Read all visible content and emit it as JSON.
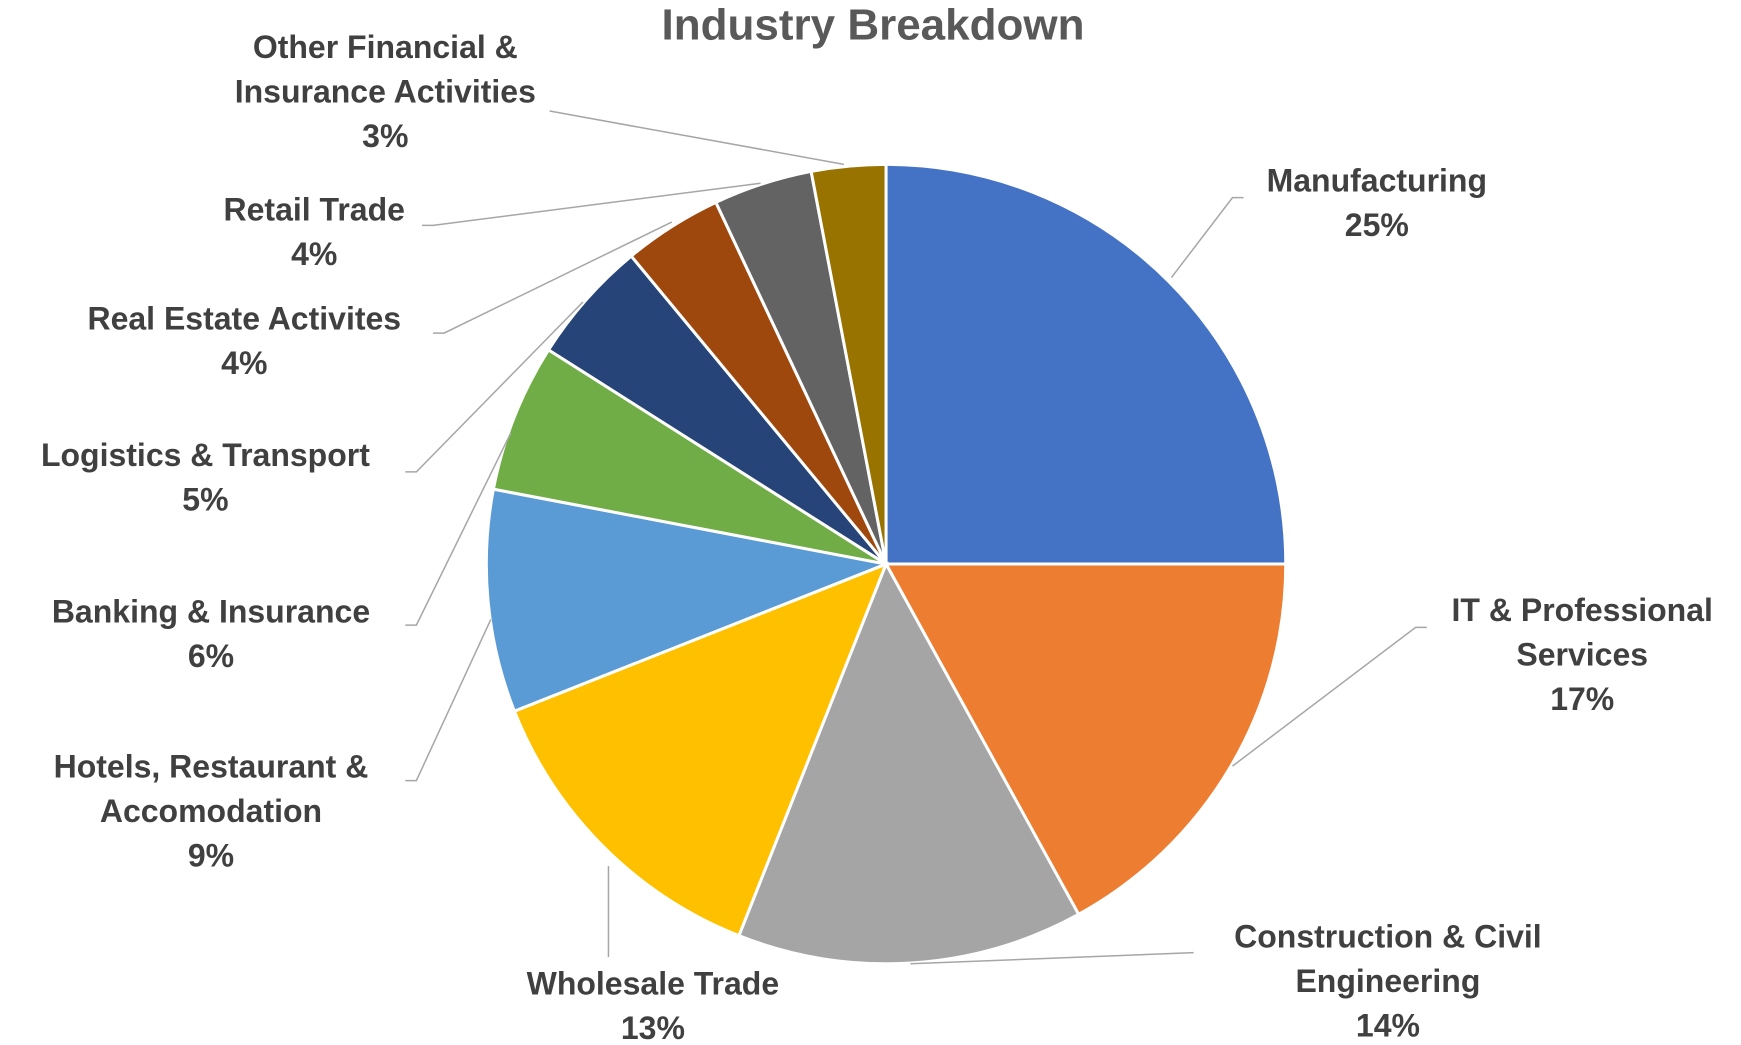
{
  "chart_data": {
    "type": "pie",
    "title": "Industry Breakdown",
    "categories": [
      "Manufacturing",
      "IT & Professional Services",
      "Construction & Civil Engineering",
      "Wholesale Trade",
      "Hotels, Restaurant & Accomodation",
      "Banking & Insurance",
      "Logistics & Transport",
      "Real Estate Activites",
      "Retail Trade",
      "Other Financial & Insurance Activities"
    ],
    "values": [
      25,
      17,
      14,
      13,
      9,
      6,
      5,
      4,
      4,
      3
    ],
    "value_labels": [
      "25%",
      "17%",
      "14%",
      "13%",
      "9%",
      "6%",
      "5%",
      "4%",
      "4%",
      "3%"
    ],
    "colors": [
      "#4472c4",
      "#ed7d31",
      "#a5a5a5",
      "#ffc000",
      "#5b9bd5",
      "#70ad47",
      "#264478",
      "#9e480e",
      "#636363",
      "#997300"
    ]
  }
}
